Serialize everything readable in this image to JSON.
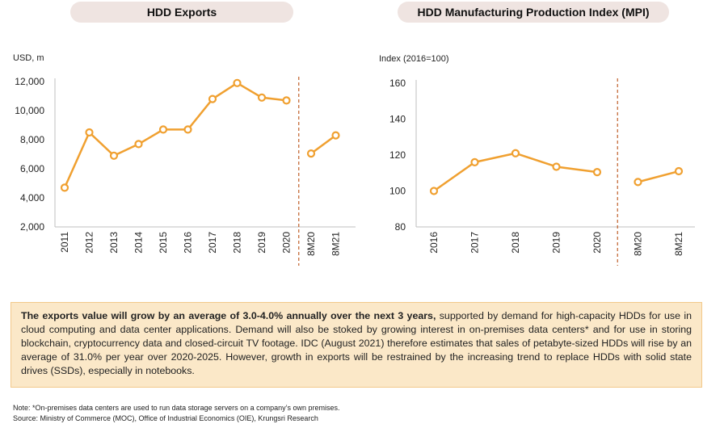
{
  "charts_header": {
    "left_title": "HDD Exports",
    "right_title": "HDD Manufacturing Production Index (MPI)"
  },
  "chart_data": [
    {
      "type": "line",
      "title": "HDD Exports",
      "ylabel": "USD, m",
      "xlabel": "",
      "categories": [
        "2011",
        "2012",
        "2013",
        "2014",
        "2015",
        "2016",
        "2017",
        "2018",
        "2019",
        "2020",
        "8M20",
        "8M21"
      ],
      "values": [
        4700,
        8500,
        6900,
        7700,
        8700,
        8700,
        10800,
        11900,
        10900,
        10700,
        7050,
        8300
      ],
      "segments": [
        [
          0,
          9
        ],
        [
          10,
          11
        ]
      ],
      "divider_after": "2020",
      "ylim": [
        2000,
        12000
      ],
      "yticks": [
        2000,
        4000,
        6000,
        8000,
        10000,
        12000
      ],
      "ytick_labels": [
        "2,000",
        "4,000",
        "6,000",
        "8,000",
        "10,000",
        "12,000"
      ],
      "color": "#f0a030",
      "grid": false
    },
    {
      "type": "line",
      "title": "HDD Manufacturing Production Index (MPI)",
      "ylabel": "Index (2016=100)",
      "xlabel": "",
      "categories": [
        "2016",
        "2017",
        "2018",
        "2019",
        "2020",
        "8M20",
        "8M21"
      ],
      "values": [
        100,
        116,
        121,
        113.5,
        110.5,
        105,
        111
      ],
      "segments": [
        [
          0,
          4
        ],
        [
          5,
          6
        ]
      ],
      "divider_after": "2020",
      "ylim": [
        80,
        160
      ],
      "yticks": [
        80,
        100,
        120,
        140,
        160
      ],
      "ytick_labels": [
        "80",
        "100",
        "120",
        "140",
        "160"
      ],
      "color": "#f0a030",
      "grid": false
    }
  ],
  "callout": {
    "bold": "The exports value will grow by an average of 3.0-4.0% annually over the next 3 years,",
    "text": " supported by demand for high-capacity HDDs for use in cloud computing and data center applications. Demand will also be stoked by growing interest in on-premises data centers* and for use in storing blockchain, cryptocurrency data and closed-circuit TV footage. IDC (August 2021) therefore estimates that sales of petabyte-sized HDDs will rise by an average of 31.0% per year over 2020-2025. However, growth in exports will be restrained by the increasing trend to replace HDDs with solid state drives (SSDs), especially in notebooks."
  },
  "footer": {
    "note": "Note: *On-premises data centers are used to run data storage servers on a company’s own premises.",
    "source": "Source: Ministry of Commerce (MOC), Office of Industrial Economics (OIE),  Krungsri Research"
  }
}
